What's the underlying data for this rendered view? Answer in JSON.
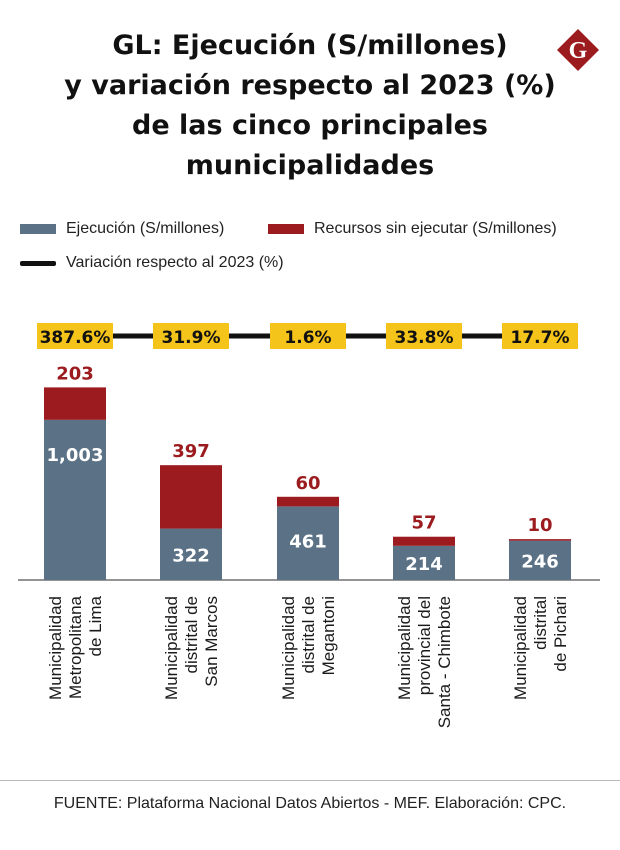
{
  "chart_data": {
    "type": "bar",
    "stacked": true,
    "title_lines": [
      "GL: Ejecución (S/millones)",
      "y variación respecto al 2023 (%)",
      "de las cinco principales",
      "municipalidades"
    ],
    "categories": [
      [
        "Municipalidad",
        "Metropolitana",
        "de Lima"
      ],
      [
        "Municipalidad",
        "distrital de",
        "San Marcos"
      ],
      [
        "Municipalidad",
        "distrital de",
        "Megantoni"
      ],
      [
        "Municipalidad",
        "provincial del",
        "Santa - Chimbote"
      ],
      [
        "Municipalidad",
        "distrital",
        "de Pichari"
      ]
    ],
    "series": [
      {
        "name": "Ejecución (S/millones)",
        "color": "#5a7186",
        "values": [
          1003,
          322,
          461,
          214,
          246
        ],
        "labels": [
          "1,003",
          "322",
          "461",
          "214",
          "246"
        ]
      },
      {
        "name": "Recursos sin ejecutar (S/millones)",
        "color": "#9b1b1e",
        "values": [
          203,
          397,
          60,
          57,
          10
        ],
        "labels": [
          "203",
          "397",
          "60",
          "57",
          "10"
        ]
      }
    ],
    "line_series": {
      "name": "Variación respecto al 2023 (%)",
      "color": "#111111",
      "values": [
        387.6,
        31.9,
        1.6,
        33.8,
        17.7
      ],
      "labels": [
        "387.6%",
        "31.9%",
        "1.6%",
        "33.8%",
        "17.7%"
      ],
      "badge_color": "#f5c41b"
    },
    "ylim": [
      0,
      1300
    ],
    "grid": false,
    "legend_position": "top-left"
  },
  "logo": {
    "letter": "G",
    "color": "#9b1b1e"
  },
  "source": "FUENTE: Plataforma Nacional Datos Abiertos - MEF. Elaboración: CPC."
}
